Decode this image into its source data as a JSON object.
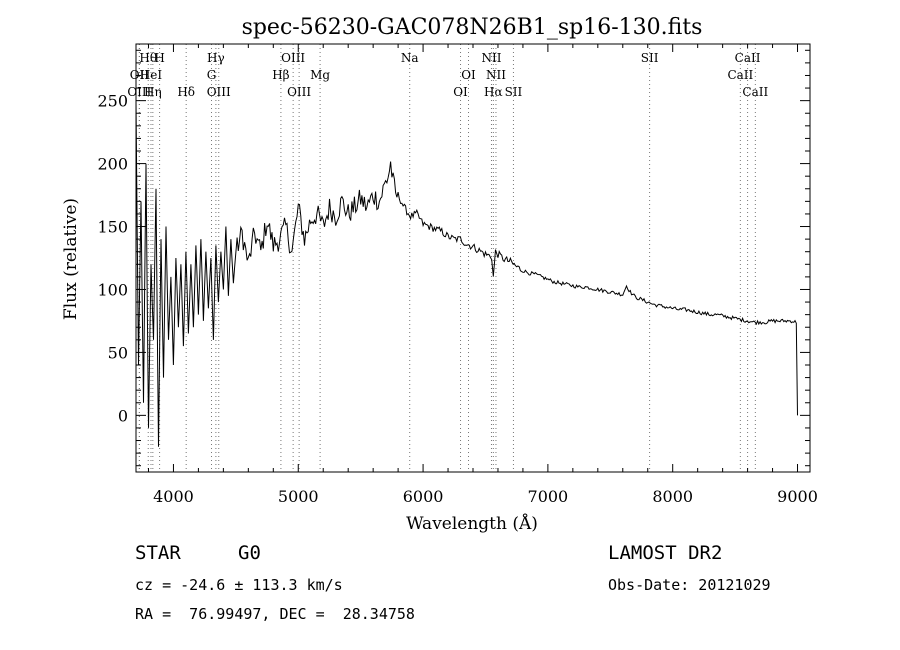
{
  "chart_data": {
    "type": "line",
    "title": "spec-56230-GAC078N26B1_sp16-130.fits",
    "xlabel": "Wavelength (Å)",
    "ylabel": "Flux (relative)",
    "xlim": [
      3700,
      9100
    ],
    "ylim": [
      -45,
      295
    ],
    "xticks": [
      4000,
      5000,
      6000,
      7000,
      8000,
      9000
    ],
    "yticks": [
      0,
      50,
      100,
      150,
      200,
      250
    ],
    "grid": false,
    "series": [
      {
        "x": [
          3700,
          3720,
          3740,
          3760,
          3780,
          3800,
          3820,
          3840,
          3860,
          3880,
          3900,
          3920,
          3940,
          3960,
          3980,
          4000,
          4020,
          4040,
          4060,
          4080,
          4100,
          4120,
          4140,
          4160,
          4180,
          4200,
          4220,
          4240,
          4260,
          4280,
          4300,
          4320,
          4340,
          4360,
          4380,
          4400,
          4420,
          4440,
          4460,
          4480,
          4500,
          4550,
          4600,
          4650,
          4700,
          4750,
          4800,
          4850,
          4900,
          4950,
          5000,
          5050,
          5100,
          5150,
          5200,
          5250,
          5300,
          5350,
          5400,
          5450,
          5500,
          5550,
          5600,
          5650,
          5700,
          5720,
          5740,
          5760,
          5780,
          5800,
          5850,
          5900,
          5950,
          6000,
          6050,
          6100,
          6150,
          6200,
          6250,
          6300,
          6350,
          6400,
          6450,
          6500,
          6550,
          6563,
          6580,
          6600,
          6650,
          6700,
          6750,
          6800,
          6850,
          6900,
          6950,
          7000,
          7050,
          7100,
          7150,
          7200,
          7250,
          7300,
          7350,
          7400,
          7450,
          7500,
          7550,
          7600,
          7630,
          7660,
          7700,
          7750,
          7800,
          7850,
          7900,
          7950,
          8000,
          8050,
          8100,
          8150,
          8200,
          8250,
          8300,
          8350,
          8400,
          8450,
          8500,
          8550,
          8600,
          8650,
          8700,
          8750,
          8800,
          8850,
          8900,
          8950,
          8990,
          9000
        ],
        "values": [
          250,
          40,
          170,
          10,
          200,
          -10,
          120,
          60,
          180,
          -25,
          140,
          30,
          150,
          60,
          110,
          40,
          125,
          70,
          120,
          55,
          130,
          65,
          120,
          70,
          135,
          80,
          140,
          75,
          130,
          85,
          125,
          60,
          135,
          90,
          130,
          100,
          150,
          95,
          140,
          105,
          130,
          145,
          120,
          145,
          130,
          155,
          135,
          140,
          150,
          130,
          165,
          140,
          155,
          160,
          150,
          165,
          158,
          170,
          160,
          165,
          172,
          165,
          175,
          170,
          185,
          190,
          200,
          185,
          175,
          175,
          165,
          158,
          160,
          152,
          150,
          148,
          146,
          142,
          140,
          140,
          136,
          134,
          131,
          128,
          126,
          110,
          130,
          128,
          124,
          122,
          118,
          115,
          113,
          112,
          110,
          108,
          106,
          105,
          104,
          103,
          102,
          102,
          101,
          100,
          99,
          98,
          97,
          96,
          103,
          98,
          94,
          92,
          90,
          88,
          87,
          86,
          85,
          84,
          84,
          83,
          82,
          81,
          80,
          80,
          79,
          78,
          77,
          76,
          75,
          74,
          74,
          74,
          75,
          75,
          75,
          75,
          74,
          0
        ]
      }
    ],
    "lines": [
      {
        "label": "Hθ",
        "x": 3798,
        "row": 1
      },
      {
        "label": "H",
        "x": 3889,
        "row": 1
      },
      {
        "label": "OII",
        "x": 3727,
        "row": 2
      },
      {
        "label": "HeI",
        "x": 3820,
        "row": 2
      },
      {
        "label": "OIII",
        "x": 3727,
        "row": 3
      },
      {
        "label": "Hη",
        "x": 3835,
        "row": 3
      },
      {
        "label": "Hδ",
        "x": 4102,
        "row": 3
      },
      {
        "label": "Hγ",
        "x": 4340,
        "row": 1
      },
      {
        "label": "G",
        "x": 4305,
        "row": 2
      },
      {
        "label": "OIII",
        "x": 4363,
        "row": 3
      },
      {
        "label": "OIII",
        "x": 4959,
        "row": 1
      },
      {
        "label": "Hβ",
        "x": 4861,
        "row": 2
      },
      {
        "label": "Mg",
        "x": 5175,
        "row": 2
      },
      {
        "label": "OIII",
        "x": 5007,
        "row": 3
      },
      {
        "label": "Na",
        "x": 5893,
        "row": 1
      },
      {
        "label": "NII",
        "x": 6548,
        "row": 1
      },
      {
        "label": "OI",
        "x": 6364,
        "row": 2
      },
      {
        "label": "NII",
        "x": 6584,
        "row": 2
      },
      {
        "label": "OI",
        "x": 6300,
        "row": 3
      },
      {
        "label": "Hα",
        "x": 6563,
        "row": 3
      },
      {
        "label": "SII",
        "x": 6724,
        "row": 3
      },
      {
        "label": "SII",
        "x": 7815,
        "row": 1
      },
      {
        "label": "CaII",
        "x": 8600,
        "row": 1
      },
      {
        "label": "CaII",
        "x": 8542,
        "row": 2
      },
      {
        "label": "CaII",
        "x": 8662,
        "row": 3
      }
    ]
  },
  "info": {
    "object_class": "STAR",
    "subclass": "G0",
    "survey": "LAMOST DR2",
    "cz": "cz = -24.6 ± 113.3 km/s",
    "obs_date": "Obs-Date: 20121029",
    "coords": "RA =  76.99497, DEC =  28.34758"
  }
}
